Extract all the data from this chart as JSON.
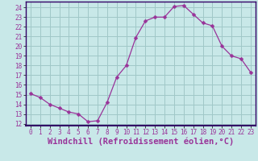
{
  "x": [
    0,
    1,
    2,
    3,
    4,
    5,
    6,
    7,
    8,
    9,
    10,
    11,
    12,
    13,
    14,
    15,
    16,
    17,
    18,
    19,
    20,
    21,
    22,
    23
  ],
  "y": [
    15.1,
    14.7,
    14.0,
    13.6,
    13.2,
    13.0,
    12.2,
    12.3,
    14.2,
    16.8,
    18.0,
    20.9,
    22.6,
    23.0,
    23.0,
    24.1,
    24.2,
    23.3,
    22.4,
    22.1,
    20.0,
    19.0,
    18.7,
    17.3
  ],
  "line_color": "#993399",
  "marker": "D",
  "marker_size": 2.5,
  "bg_color": "#c8e8e8",
  "plot_bg_color": "#c8e8e8",
  "grid_color": "#a0c8c8",
  "xlabel": "Windchill (Refroidissement éolien,°C)",
  "ylim": [
    11.8,
    24.6
  ],
  "xlim": [
    -0.5,
    23.5
  ],
  "yticks": [
    12,
    13,
    14,
    15,
    16,
    17,
    18,
    19,
    20,
    21,
    22,
    23,
    24
  ],
  "xticks": [
    0,
    1,
    2,
    3,
    4,
    5,
    6,
    7,
    8,
    9,
    10,
    11,
    12,
    13,
    14,
    15,
    16,
    17,
    18,
    19,
    20,
    21,
    22,
    23
  ],
  "label_color": "#993399",
  "border_color": "#330066",
  "tick_fontsize": 5.5,
  "xlabel_fontsize": 7.5,
  "bottom_bar_color": "#330066"
}
